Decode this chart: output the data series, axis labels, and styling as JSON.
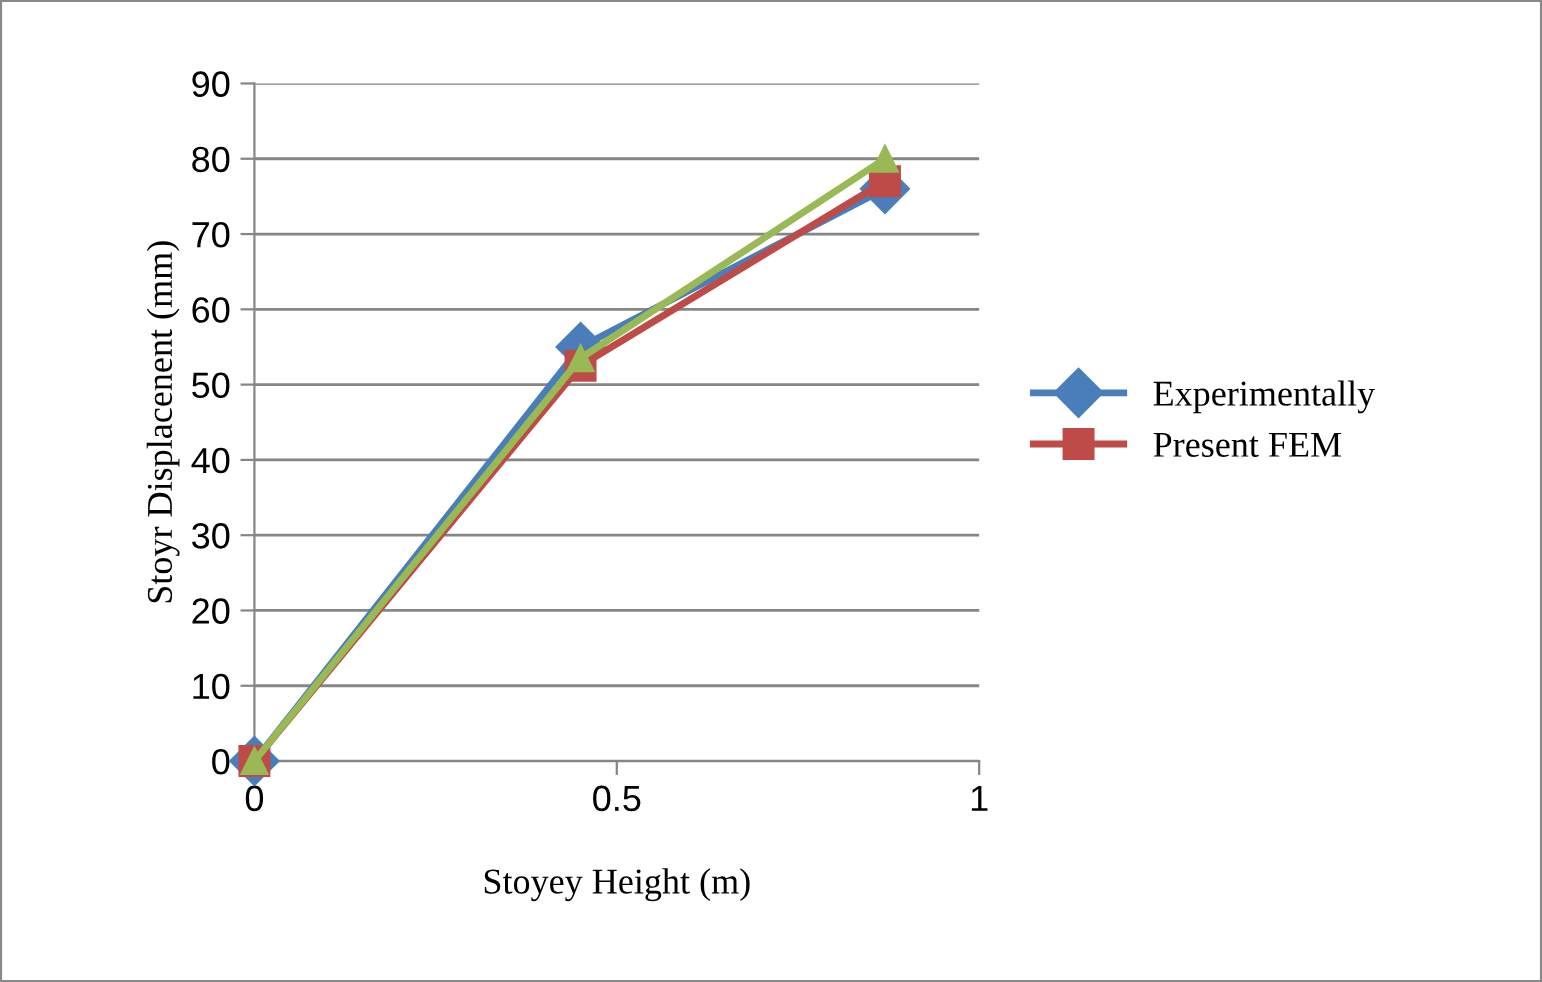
{
  "chart_data": {
    "type": "line",
    "xlabel": "Stoyey Height (m)",
    "ylabel": "Stoyr Displacenent (mm)",
    "xlim": [
      0,
      1
    ],
    "xticks": [
      0,
      0.5,
      1
    ],
    "ylim": [
      0,
      90
    ],
    "yticks": [
      0,
      10,
      20,
      30,
      40,
      50,
      60,
      70,
      80,
      90
    ],
    "grid": "y",
    "legend": "right",
    "series": [
      {
        "name": "Experimentally",
        "color": "#4a7ebb",
        "marker": "diamond",
        "x": [
          0,
          0.45,
          0.87
        ],
        "values": [
          0,
          55,
          76
        ]
      },
      {
        "name": "Present FEM",
        "color": "#be4b48",
        "marker": "square",
        "x": [
          0,
          0.45,
          0.87
        ],
        "values": [
          0,
          52.5,
          77
        ]
      },
      {
        "color": "#98b954",
        "marker": "triangle",
        "x": [
          0,
          0.45,
          0.87
        ],
        "values": [
          0,
          53.5,
          80
        ]
      }
    ]
  }
}
